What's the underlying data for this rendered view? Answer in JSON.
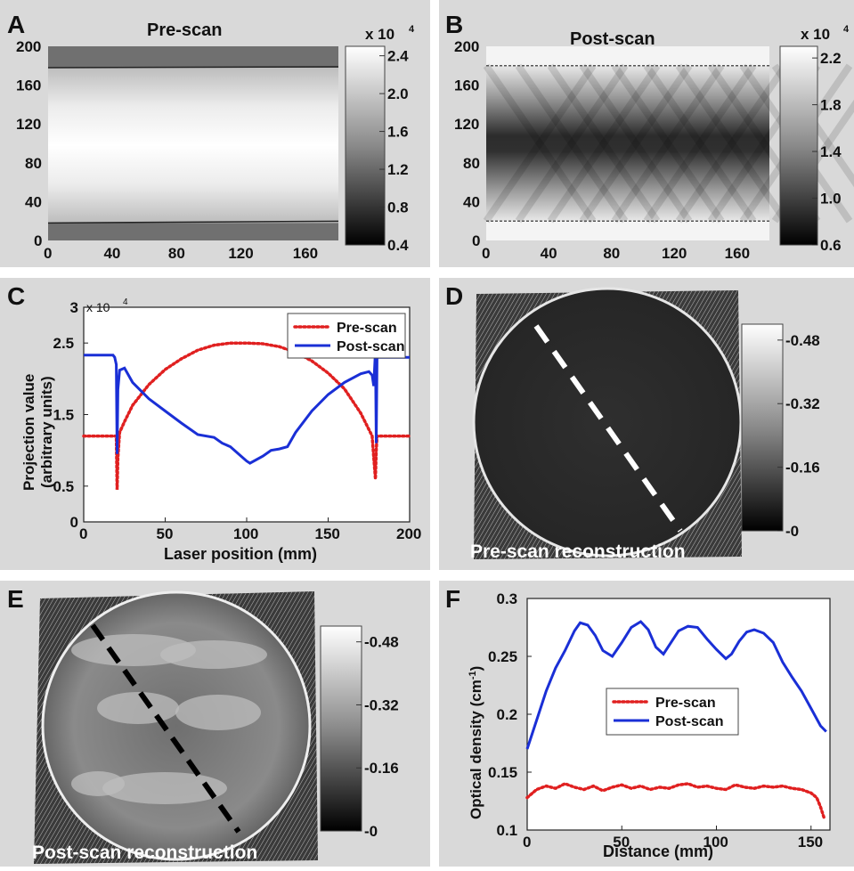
{
  "chart_data": [
    {
      "panel": "A",
      "type": "heatmap",
      "title": "Pre-scan",
      "x_ticks": [
        0,
        40,
        80,
        120,
        160
      ],
      "y_ticks": [
        0,
        40,
        80,
        120,
        160,
        200
      ],
      "xlim": [
        0,
        180
      ],
      "ylim": [
        0,
        200
      ],
      "band_rows": [
        18,
        178
      ],
      "colorbar": {
        "multiplier": "x 10",
        "exponent": "4",
        "ticks": [
          "2.4",
          "2.0",
          "1.6",
          "1.2",
          "0.8",
          "0.4"
        ],
        "range": [
          0.4,
          2.5
        ]
      },
      "colormap": "gray"
    },
    {
      "panel": "B",
      "type": "heatmap",
      "title": "Post-scan",
      "x_ticks": [
        0,
        40,
        80,
        120,
        160
      ],
      "y_ticks": [
        0,
        40,
        80,
        120,
        160,
        200
      ],
      "xlim": [
        0,
        180
      ],
      "ylim": [
        0,
        200
      ],
      "band_rows": [
        20,
        180
      ],
      "colorbar": {
        "multiplier": "x 10",
        "exponent": "4",
        "ticks": [
          "2.2",
          "1.8",
          "1.4",
          "1.0",
          "0.6"
        ],
        "range": [
          0.6,
          2.3
        ]
      },
      "colormap": "gray"
    },
    {
      "panel": "C",
      "type": "line",
      "xlabel": "Laser position (mm)",
      "ylabel": [
        "Projection value",
        "(arbitrary units)"
      ],
      "y_multiplier": "x 10",
      "y_exponent": "4",
      "xlim": [
        0,
        200
      ],
      "ylim": [
        0,
        3
      ],
      "x_ticks": [
        "0",
        "50",
        "100",
        "150",
        "200"
      ],
      "y_ticks": [
        "0",
        "0.5",
        "1.5",
        "2.5",
        "3"
      ],
      "y_tick_values": [
        0,
        0.5,
        1.5,
        2.5,
        3
      ],
      "legend": "top-right",
      "series": [
        {
          "name": "Pre-scan",
          "style": "dotted",
          "color": "#e02020",
          "x": [
            0,
            20,
            20.5,
            21,
            22,
            25,
            30,
            40,
            50,
            60,
            70,
            80,
            90,
            100,
            110,
            120,
            130,
            140,
            150,
            160,
            170,
            177,
            178,
            179,
            179.5,
            180,
            200
          ],
          "y": [
            1.2,
            1.2,
            0.45,
            0.9,
            1.25,
            1.4,
            1.63,
            1.92,
            2.13,
            2.28,
            2.4,
            2.47,
            2.5,
            2.5,
            2.49,
            2.45,
            2.37,
            2.25,
            2.08,
            1.86,
            1.52,
            1.2,
            0.9,
            0.6,
            1.0,
            1.2,
            1.2
          ]
        },
        {
          "name": "Post-scan",
          "style": "solid",
          "color": "#1a2fd6",
          "x": [
            0,
            18,
            19,
            20,
            20.5,
            21,
            22,
            25,
            30,
            40,
            50,
            60,
            70,
            80,
            85,
            90,
            95,
            100,
            102,
            110,
            115,
            120,
            125,
            130,
            140,
            150,
            160,
            170,
            175,
            177,
            178,
            179,
            179.5,
            180,
            200
          ],
          "y": [
            2.33,
            2.33,
            2.3,
            2.2,
            0.95,
            1.85,
            2.12,
            2.15,
            1.95,
            1.72,
            1.55,
            1.38,
            1.22,
            1.18,
            1.1,
            1.05,
            0.95,
            0.85,
            0.82,
            0.92,
            1.0,
            1.02,
            1.05,
            1.25,
            1.55,
            1.78,
            1.95,
            2.07,
            2.1,
            2.05,
            1.9,
            2.4,
            1.1,
            2.3,
            2.3
          ]
        }
      ]
    },
    {
      "panel": "D",
      "type": "heatmap",
      "caption": "Pre-scan reconstruction",
      "colorbar": {
        "ticks": [
          "0.48",
          "0.32",
          "0.16",
          "0"
        ],
        "range": [
          0,
          0.52
        ]
      },
      "colormap": "gray"
    },
    {
      "panel": "E",
      "type": "heatmap",
      "caption": "Post-scan reconstruction",
      "colorbar": {
        "ticks": [
          "0.48",
          "0.32",
          "0.16",
          "0"
        ],
        "range": [
          0,
          0.52
        ]
      },
      "colormap": "gray"
    },
    {
      "panel": "F",
      "type": "line",
      "xlabel": "Distance (mm)",
      "ylabel_main": "Optical density (cm",
      "ylabel_sup": "-1",
      "ylabel_end": ")",
      "xlim": [
        0,
        160
      ],
      "ylim": [
        0.1,
        0.3
      ],
      "x_ticks": [
        "0",
        "50",
        "100",
        "150"
      ],
      "y_ticks": [
        "0.1",
        "0.15",
        "0.2",
        "0.25",
        "0.3"
      ],
      "legend": "center-right",
      "series": [
        {
          "name": "Pre-scan",
          "style": "dotted",
          "color": "#e02020",
          "x": [
            0,
            5,
            10,
            15,
            20,
            25,
            30,
            35,
            40,
            45,
            50,
            55,
            60,
            65,
            70,
            75,
            80,
            85,
            90,
            95,
            100,
            105,
            110,
            115,
            120,
            125,
            130,
            135,
            140,
            145,
            150,
            153,
            155,
            157
          ],
          "y": [
            0.128,
            0.135,
            0.138,
            0.136,
            0.14,
            0.137,
            0.135,
            0.138,
            0.134,
            0.137,
            0.139,
            0.136,
            0.138,
            0.135,
            0.137,
            0.136,
            0.139,
            0.14,
            0.137,
            0.138,
            0.136,
            0.135,
            0.139,
            0.137,
            0.136,
            0.138,
            0.137,
            0.138,
            0.136,
            0.135,
            0.132,
            0.128,
            0.12,
            0.11
          ]
        },
        {
          "name": "Post-scan",
          "style": "solid",
          "color": "#1a2fd6",
          "x": [
            0,
            3,
            6,
            10,
            15,
            20,
            25,
            28,
            32,
            36,
            40,
            45,
            50,
            55,
            60,
            64,
            68,
            72,
            76,
            80,
            85,
            90,
            95,
            100,
            105,
            108,
            112,
            116,
            120,
            125,
            130,
            135,
            140,
            145,
            150,
            155,
            158
          ],
          "y": [
            0.17,
            0.185,
            0.2,
            0.22,
            0.24,
            0.255,
            0.272,
            0.279,
            0.277,
            0.268,
            0.255,
            0.25,
            0.262,
            0.275,
            0.28,
            0.273,
            0.258,
            0.252,
            0.262,
            0.272,
            0.276,
            0.275,
            0.265,
            0.256,
            0.248,
            0.252,
            0.263,
            0.271,
            0.273,
            0.27,
            0.262,
            0.245,
            0.232,
            0.22,
            0.205,
            0.19,
            0.185
          ]
        }
      ]
    }
  ],
  "panel_labels": [
    "A",
    "B",
    "C",
    "D",
    "E",
    "F"
  ]
}
